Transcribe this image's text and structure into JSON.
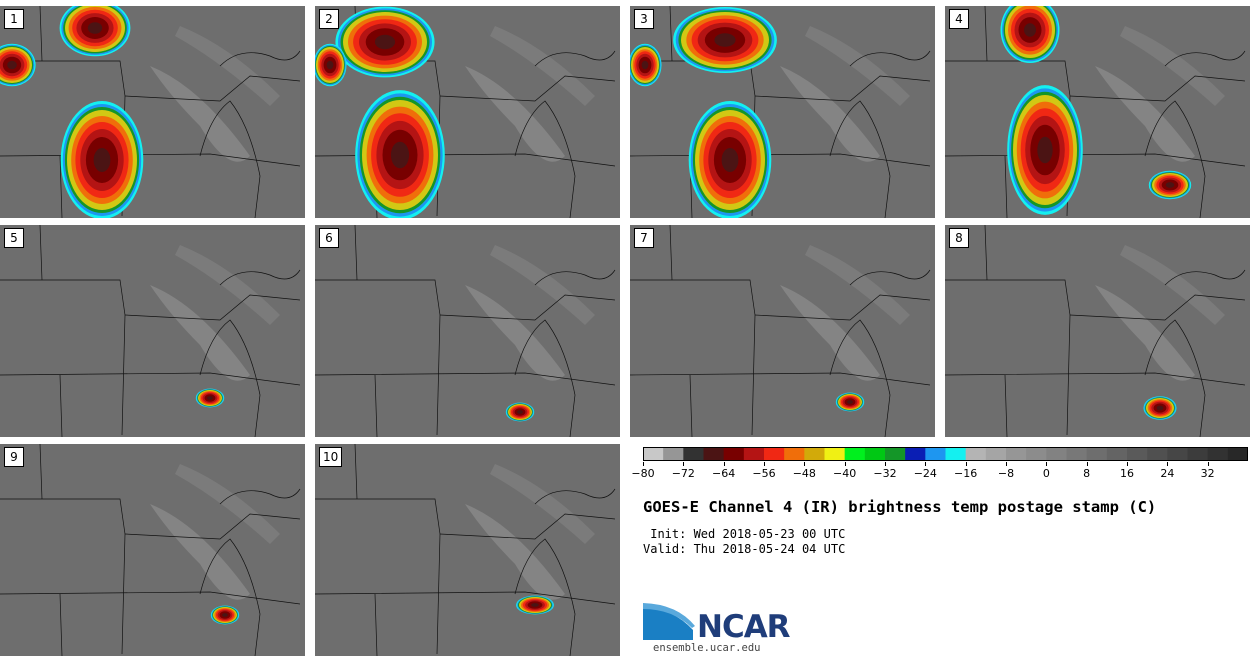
{
  "panels": [
    {
      "label": "1"
    },
    {
      "label": "2"
    },
    {
      "label": "3"
    },
    {
      "label": "4"
    },
    {
      "label": "5"
    },
    {
      "label": "6"
    },
    {
      "label": "7"
    },
    {
      "label": "8"
    },
    {
      "label": "9"
    },
    {
      "label": "10"
    }
  ],
  "colorbar": {
    "colors": [
      "#c8c8c8",
      "#969696",
      "#323232",
      "#4b1414",
      "#780000",
      "#b41414",
      "#f02814",
      "#f06e0a",
      "#d2aa0a",
      "#f0f014",
      "#00f01e",
      "#00c814",
      "#149628",
      "#0a1eb4",
      "#1e96f0",
      "#14f0f0",
      "#b4b4b4",
      "#a5a5a5",
      "#969696",
      "#8c8c8c",
      "#828282",
      "#787878",
      "#6e6e6e",
      "#646464",
      "#5a5a5a",
      "#505050",
      "#464646",
      "#3c3c3c",
      "#323232",
      "#282828"
    ],
    "tick_labels": [
      "−80",
      "−72",
      "−64",
      "−56",
      "−48",
      "−40",
      "−32",
      "−24",
      "−16",
      "−8",
      "0",
      "8",
      "16",
      "24",
      "32"
    ]
  },
  "title": "GOES-E Channel 4 (IR) brightness temp postage stamp (C)",
  "init": " Init: Wed 2018-05-23 00 UTC",
  "valid": "Valid: Thu 2018-05-24 04 UTC",
  "logo": {
    "text": "NCAR",
    "url": "ensemble.ucar.edu",
    "color": "#1f3d7a",
    "swoosh": "#1a7fc4"
  }
}
